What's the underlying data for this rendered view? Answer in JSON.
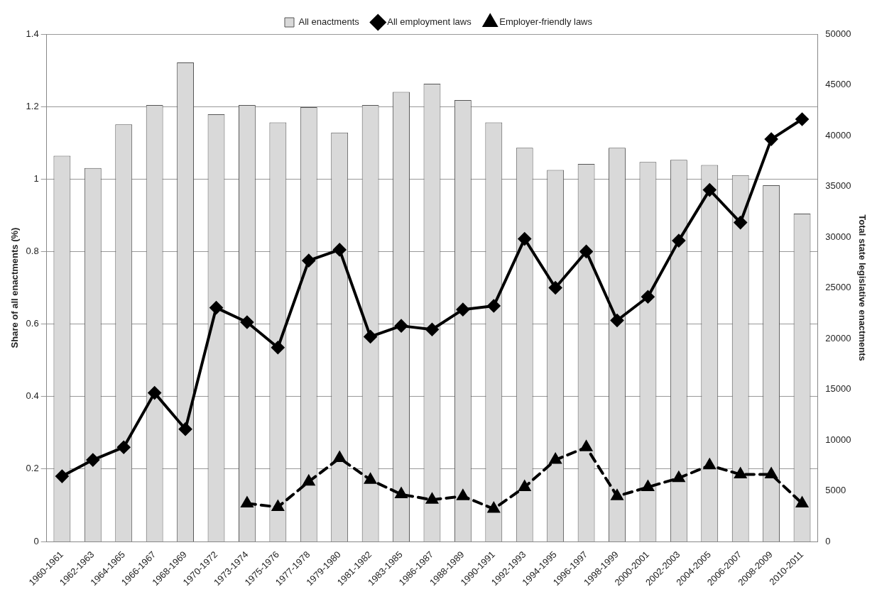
{
  "chart_data": {
    "type": "bar",
    "categories": [
      "1960-1961",
      "1962-1963",
      "1964-1965",
      "1966-1967",
      "1968-1969",
      "1970-1972",
      "1973-1974",
      "1975-1976",
      "1977-1978",
      "1979-1980",
      "1981-1982",
      "1983-1985",
      "1986-1987",
      "1988-1989",
      "1990-1991",
      "1992-1993",
      "1994-1995",
      "1996-1997",
      "1998-1999",
      "2000-2001",
      "2002-2003",
      "2004-2005",
      "2006-2007",
      "2008-2009",
      "2010-2011"
    ],
    "ylabel": "Share of all enactments (%)",
    "y2label": "Total state legislative enactments",
    "ylim": [
      0,
      1.4
    ],
    "yticks": [
      0,
      0.2,
      0.4,
      0.6,
      0.8,
      1,
      1.2,
      1.4
    ],
    "y2lim": [
      0,
      50000
    ],
    "y2ticks": [
      0,
      5000,
      10000,
      15000,
      20000,
      25000,
      30000,
      35000,
      40000,
      45000,
      50000
    ],
    "grid": "y",
    "legend": "top",
    "series": [
      {
        "name": "All enactments",
        "axis": "y2",
        "color": "#d9d9d9",
        "values": [
          38000,
          36800,
          41100,
          43000,
          47200,
          42100,
          43000,
          41300,
          42800,
          40300,
          43000,
          44300,
          45100,
          43500,
          41300,
          38800,
          36600,
          37200,
          38800,
          37400,
          37600,
          37100,
          36100,
          35100,
          32300
        ]
      },
      {
        "name": "All employment laws",
        "type": "line",
        "axis": "y",
        "color": "#000000",
        "marker": "diamond",
        "line_style": "solid",
        "values": [
          0.18,
          0.225,
          0.26,
          0.41,
          0.31,
          0.645,
          0.605,
          0.535,
          0.775,
          0.805,
          0.565,
          0.595,
          0.585,
          0.64,
          0.65,
          0.835,
          0.7,
          0.8,
          0.61,
          0.675,
          0.83,
          0.97,
          0.88,
          1.11,
          1.165
        ]
      },
      {
        "name": "Employer-friendly laws",
        "type": "line",
        "axis": "y",
        "color": "#000000",
        "marker": "triangle",
        "line_style": "dashed",
        "values": [
          null,
          null,
          null,
          null,
          null,
          null,
          0.105,
          0.095,
          0.165,
          0.23,
          0.17,
          0.13,
          0.115,
          0.125,
          0.09,
          0.15,
          0.225,
          0.26,
          0.125,
          0.15,
          0.175,
          0.21,
          0.185,
          0.185,
          0.105
        ]
      }
    ]
  }
}
